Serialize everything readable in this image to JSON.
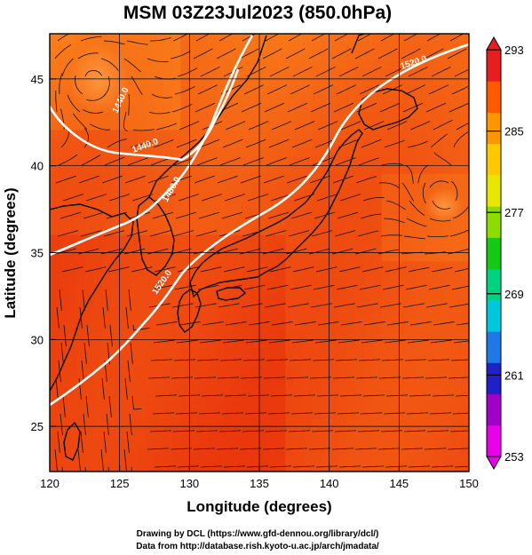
{
  "chart_data": {
    "type": "heatmap",
    "title": "MSM 03Z23Jul2023 (850.0hPa)",
    "xlabel": "Longitude (degrees)",
    "ylabel": "Latitude  (degrees)",
    "xlim": [
      120,
      150
    ],
    "ylim": [
      22.4,
      47.6
    ],
    "xticks": [
      120,
      125,
      130,
      135,
      140,
      145,
      150
    ],
    "yticks": [
      25,
      30,
      35,
      40,
      45
    ],
    "grid": true,
    "colorbar": {
      "min": 253,
      "max": 293,
      "ticks": [
        253,
        261,
        269,
        277,
        285,
        293
      ],
      "colors": [
        "#e800e8",
        "#a000c8",
        "#2020c8",
        "#1e78e6",
        "#00c8dc",
        "#00d282",
        "#14c814",
        "#8cdc00",
        "#e6e600",
        "#ffc800",
        "#ff9600",
        "#ff5a00",
        "#e61e1e"
      ]
    },
    "contours": [
      {
        "label": "1440.0"
      },
      {
        "label": "1440.0"
      },
      {
        "label": "1480.0"
      },
      {
        "label": "1520.0"
      },
      {
        "label": "1520.0"
      }
    ]
  },
  "credits": {
    "line1": "Drawing by DCL (https://www.gfd-dennou.org/library/dcl/)",
    "line2": "Data from http://database.rish.kyoto-u.ac.jp/arch/jmadata/"
  }
}
